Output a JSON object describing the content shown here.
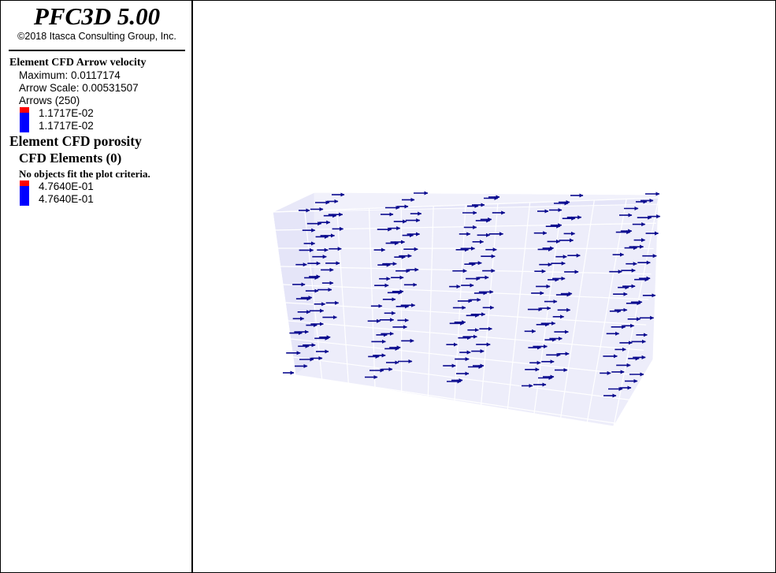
{
  "header": {
    "title": "PFC3D 5.00",
    "copyright": "©2018 Itasca Consulting Group, Inc."
  },
  "legend": {
    "arrow_section": {
      "title": "Element CFD Arrow velocity",
      "maximum": "Maximum: 0.0117174",
      "arrow_scale": "Arrow Scale: 0.00531507",
      "arrows": "Arrows (250)",
      "range_max": "1.1717E-02",
      "range_min": "1.1717E-02"
    },
    "porosity_section": {
      "title": "Element CFD porosity",
      "elements": "CFD Elements (0)",
      "note": "No objects fit the plot criteria.",
      "range_max": "4.7640E-01",
      "range_min": "4.7640E-01"
    },
    "colors": {
      "max": "#ff0000",
      "min": "#0000ff"
    }
  },
  "viewport": {
    "arrow_color": "#0b0b8f",
    "grid_tint": "#d8d8f4",
    "arrow_count": 250
  }
}
